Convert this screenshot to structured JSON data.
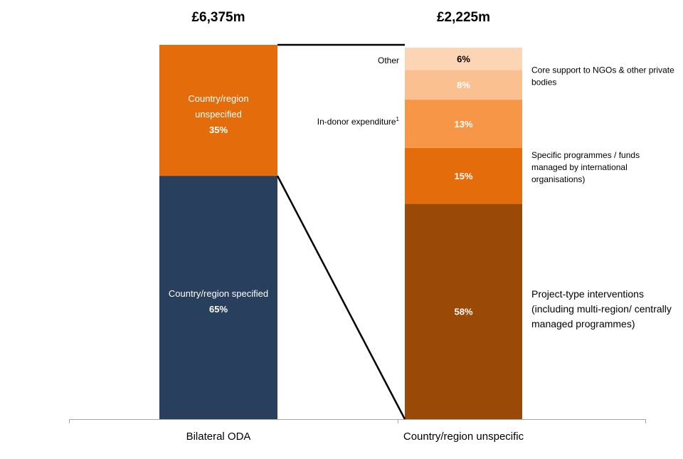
{
  "chart_data": {
    "type": "bar",
    "stacked": true,
    "categories": [
      "Bilateral ODA",
      "Country/region unspecific"
    ],
    "totals": [
      "£6,375m",
      "£2,225m"
    ],
    "ylim": [
      0,
      100
    ],
    "grid": false,
    "bars": [
      {
        "category": "Bilateral ODA",
        "total_label": "£6,375m",
        "segments": [
          {
            "name_lines": [
              "Country/region specified"
            ],
            "value": 65,
            "value_label": "65%",
            "color": "#283f5e",
            "label_position": "inside"
          },
          {
            "name_lines": [
              "Country/region",
              "unspecified"
            ],
            "value": 35,
            "value_label": "35%",
            "color": "#e46c0a",
            "label_position": "inside"
          }
        ]
      },
      {
        "category": "Country/region unspecific",
        "total_label": "£2,225m",
        "segments": [
          {
            "name_lines": [
              "Project-type interventions",
              "(including multi-region/ centrally",
              "managed programmes)"
            ],
            "value": 58,
            "value_label": "58%",
            "color": "#9a4a06",
            "label_position": "right"
          },
          {
            "name_lines": [
              "Specific programmes / funds",
              "managed by international",
              "organisations)"
            ],
            "value": 15,
            "value_label": "15%",
            "color": "#e46c0a",
            "label_position": "right"
          },
          {
            "name_lines": [
              "In-donor expenditure"
            ],
            "superscript": "1",
            "value": 13,
            "value_label": "13%",
            "color": "#f79646",
            "label_position": "left"
          },
          {
            "name_lines": [
              "Core support to NGOs & other private",
              "bodies"
            ],
            "value": 8,
            "value_label": "8%",
            "color": "#fac090",
            "label_position": "right"
          },
          {
            "name_lines": [
              "Other"
            ],
            "value": 6,
            "value_label": "6%",
            "color": "#fcd5b5",
            "label_position": "left"
          }
        ]
      }
    ],
    "connector": {
      "from_segment": "Country/region unspecified",
      "to_category": "Country/region unspecific"
    }
  }
}
